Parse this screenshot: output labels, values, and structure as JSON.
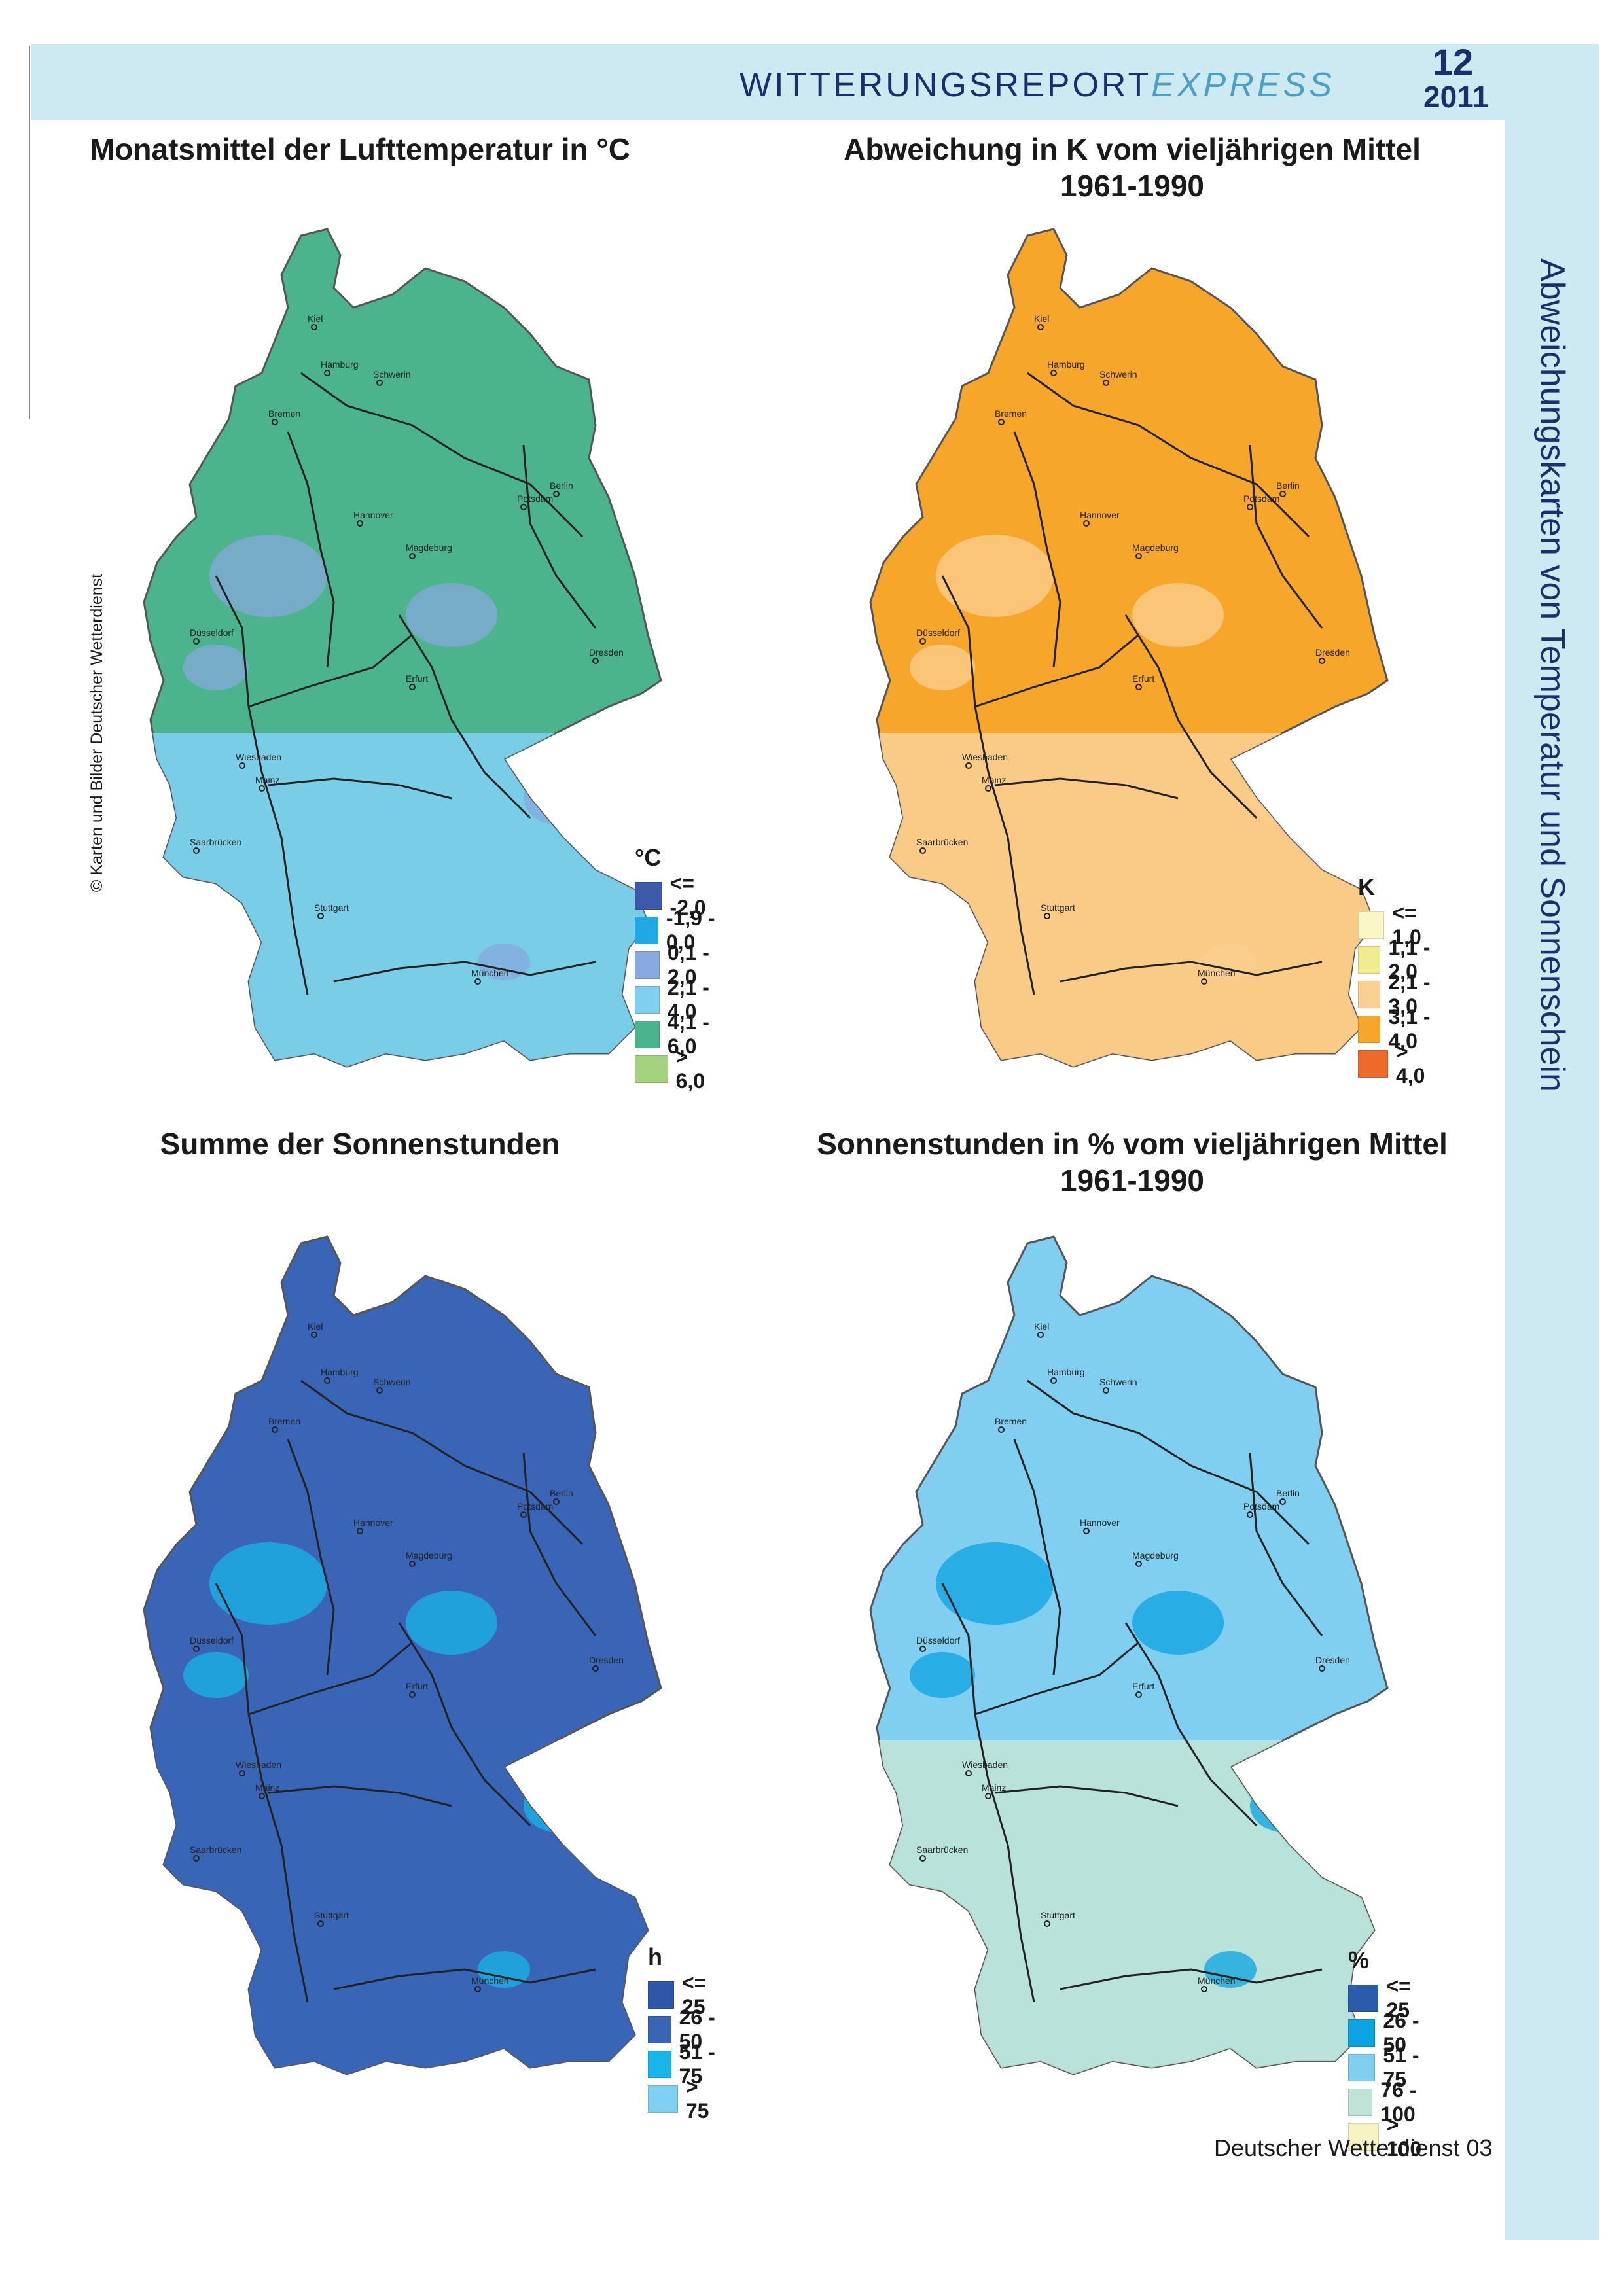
{
  "header": {
    "title_main": "WITTERUNGSREPORT",
    "title_express": "EXPRESS",
    "issue_number": "12",
    "issue_year": "2011"
  },
  "side_title": "Abweichungskarten von Temperatur und Sonnenschein",
  "credit": "© Karten und Bilder Deutscher Wetterdienst",
  "footer": "Deutscher Wetterdienst  03",
  "cities": [
    "Kiel",
    "Hamburg",
    "Schwerin",
    "Bremen",
    "Berlin",
    "Potsdam",
    "Hannover",
    "Magdeburg",
    "Düsseldorf",
    "Dresden",
    "Erfurt",
    "Wiesbaden",
    "Mainz",
    "Saarbrücken",
    "Stuttgart",
    "München"
  ],
  "maps": [
    {
      "title_line1": "Monatsmittel der Lufttemperatur in °C",
      "title_line2": "",
      "legend_unit": "°C",
      "legend": [
        {
          "label": "<= -2,0",
          "color": "#3d5aa8"
        },
        {
          "label": "-1,9 - 0,0",
          "color": "#20a8e3"
        },
        {
          "label": "0,1 - 2,0",
          "color": "#86a9de"
        },
        {
          "label": "2,1 - 4,0",
          "color": "#80cff0"
        },
        {
          "label": "4,1 - 6,0",
          "color": "#4cb48d"
        },
        {
          "label": "> 6,0",
          "color": "#a5d27e"
        }
      ],
      "fill_main": "#4cb48d",
      "fill_south": "#80cff0",
      "fill_patch": "#86a9de"
    },
    {
      "title_line1": "Abweichung in K vom vieljährigen Mittel",
      "title_line2": "1961-1990",
      "legend_unit": "K",
      "legend": [
        {
          "label": "<= 1,0",
          "color": "#fbf6c8"
        },
        {
          "label": "1,1 - 2,0",
          "color": "#f1ec8f"
        },
        {
          "label": "2,1 - 3,0",
          "color": "#fbcf90"
        },
        {
          "label": "3,1 - 4,0",
          "color": "#f5a62b"
        },
        {
          "label": "> 4,0",
          "color": "#ee6a2a"
        }
      ],
      "fill_main": "#f5a62b",
      "fill_south": "#fbcf90",
      "fill_patch": "#fbcf90"
    },
    {
      "title_line1": "Summe der Sonnenstunden",
      "title_line2": "",
      "legend_unit": "h",
      "legend": [
        {
          "label": "<= 25",
          "color": "#2e57a8"
        },
        {
          "label": "26 - 50",
          "color": "#3a65b6"
        },
        {
          "label": "51 - 75",
          "color": "#19b5e8"
        },
        {
          "label": "> 75",
          "color": "#7fd0f2"
        }
      ],
      "fill_main": "#3a65b6",
      "fill_south": "#3a65b6",
      "fill_patch": "#19b5e8"
    },
    {
      "title_line1": "Sonnenstunden in % vom vieljährigen Mittel",
      "title_line2": "1961-1990",
      "legend_unit": "%",
      "legend": [
        {
          "label": "<= 25",
          "color": "#2b5cab"
        },
        {
          "label": "26 - 50",
          "color": "#0ba3e0"
        },
        {
          "label": "51 - 75",
          "color": "#80cff0"
        },
        {
          "label": "76 - 100",
          "color": "#bfe3d7"
        },
        {
          "label": "> 100",
          "color": "#f7f3c2"
        }
      ],
      "fill_main": "#80cff0",
      "fill_south": "#bfe3d7",
      "fill_patch": "#0ba3e0"
    }
  ]
}
